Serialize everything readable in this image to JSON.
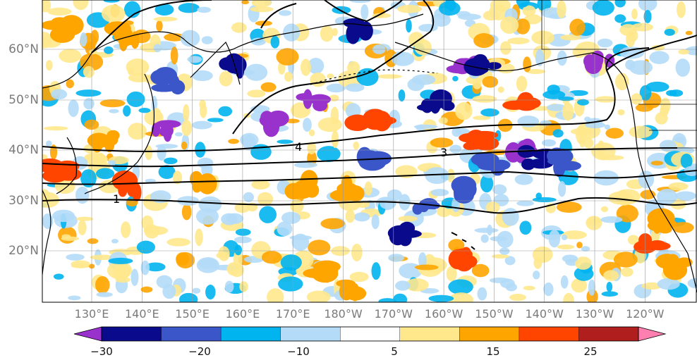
{
  "map": {
    "lat_ticks": [
      "60°N",
      "50°N",
      "40°N",
      "30°N",
      "20°N"
    ],
    "lon_ticks": [
      "130°E",
      "140°E",
      "150°E",
      "160°E",
      "170°E",
      "180°W",
      "170°W",
      "160°W",
      "150°W",
      "140°W",
      "130°W",
      "120°W"
    ],
    "contour_labels": [
      "4",
      "3",
      "1"
    ]
  },
  "colorbar": {
    "tick_labels": [
      "−30",
      "−20",
      "−10",
      "5",
      "15",
      "25"
    ],
    "colors": [
      "#9932cc",
      "#0a0a8c",
      "#3a56c8",
      "#00b4f0",
      "#b4dcf8",
      "#ffffff",
      "#ffe88c",
      "#ffa500",
      "#ff4500",
      "#b01e1e",
      "#ff7fb0"
    ]
  },
  "colors": {
    "land_line": "#000000",
    "contour": "#000000",
    "grid": "#999999",
    "tick_text": "#7a7a7a"
  }
}
